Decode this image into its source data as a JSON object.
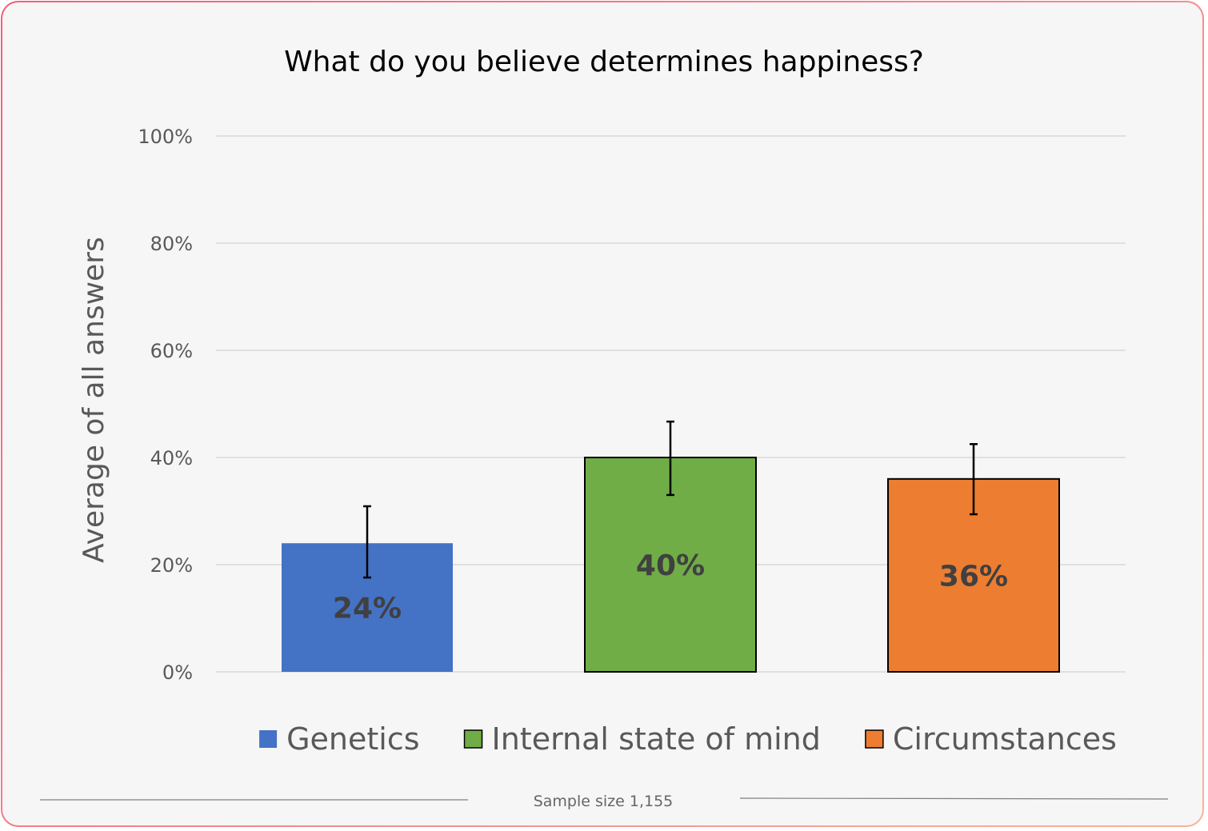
{
  "chart_data": {
    "type": "bar",
    "title": "What do you believe determines happiness?",
    "ylabel": "Average of all answers",
    "xlabel": "",
    "ylim": [
      0,
      100
    ],
    "yticks": [
      0,
      20,
      40,
      60,
      80,
      100
    ],
    "ytick_labels": [
      "0%",
      "20%",
      "40%",
      "60%",
      "80%",
      "100%"
    ],
    "grid": true,
    "legend_position": "bottom",
    "categories": [
      "Genetics",
      "Internal state of mind",
      "Circumstances"
    ],
    "values": [
      24,
      40,
      36
    ],
    "value_labels": [
      "24%",
      "40%",
      "36%"
    ],
    "error_bars": [
      {
        "low": 17.6,
        "high": 30.9
      },
      {
        "low": 33.0,
        "high": 46.7
      },
      {
        "low": 29.4,
        "high": 42.5
      }
    ],
    "colors": [
      "#4472c4",
      "#70ad47",
      "#ed7d31"
    ],
    "bar_outline": [
      "none",
      "#000000",
      "#000000"
    ]
  },
  "footer": {
    "note": "Sample size 1,155"
  }
}
